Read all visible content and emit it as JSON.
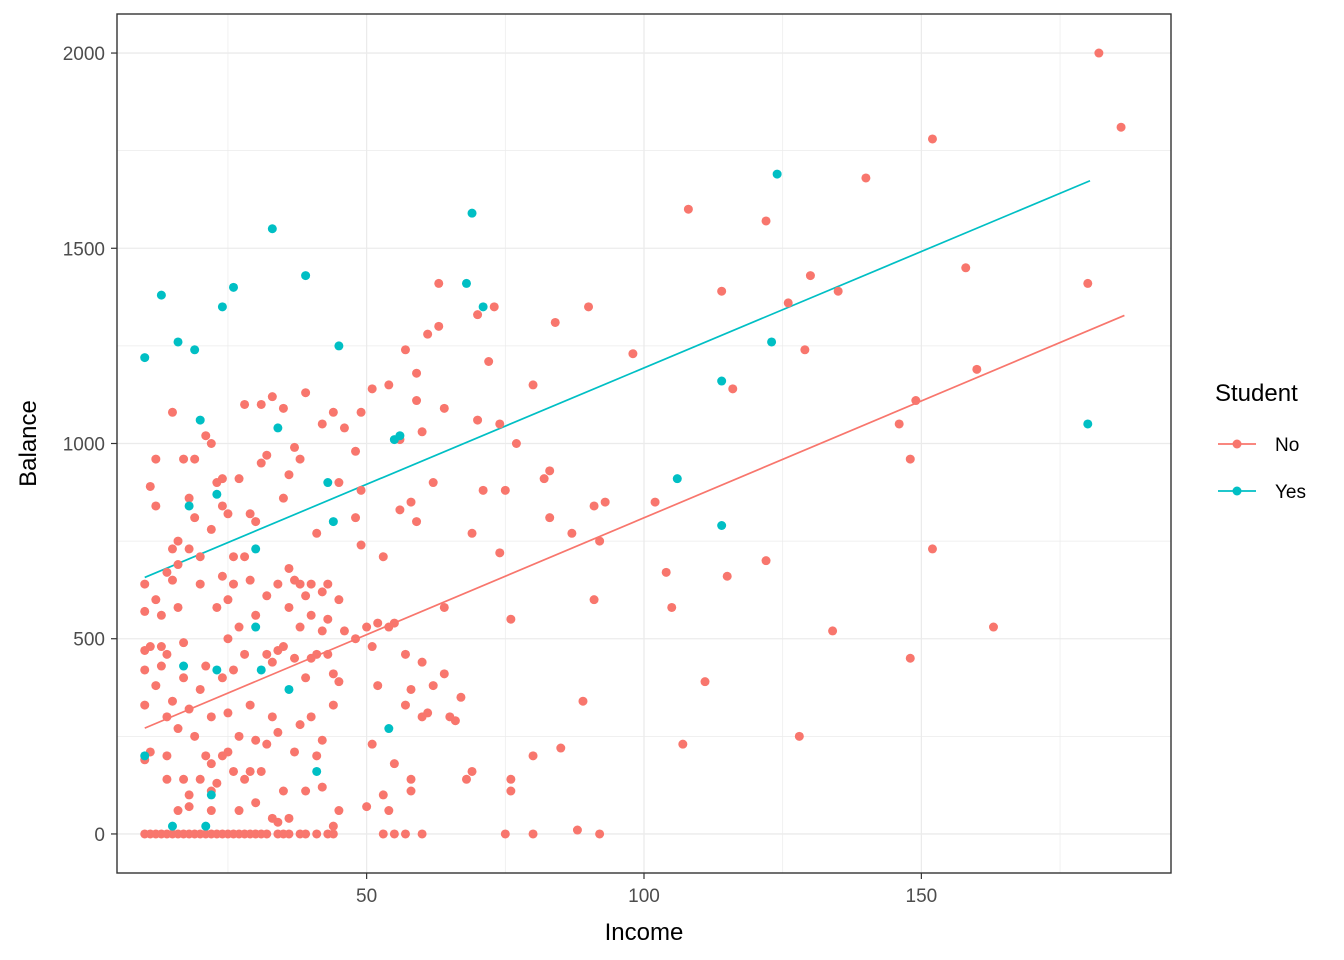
{
  "chart_data": {
    "type": "scatter",
    "title": "",
    "xlabel": "Income",
    "ylabel": "Balance",
    "xlim": [
      5,
      195
    ],
    "ylim": [
      -100,
      2100
    ],
    "x_ticks": [
      50,
      100,
      150
    ],
    "y_ticks": [
      0,
      500,
      1000,
      1500,
      2000
    ],
    "grid": true,
    "legend": {
      "title": "Student",
      "position": "right"
    },
    "series": [
      {
        "name": "No",
        "color": "#F8766D",
        "fit_line": {
          "x": [
            10,
            186.6
          ],
          "y": [
            271,
            1328
          ]
        },
        "points": [
          [
            10,
            0
          ],
          [
            11,
            0
          ],
          [
            12,
            0
          ],
          [
            13,
            0
          ],
          [
            14,
            0
          ],
          [
            15,
            0
          ],
          [
            16,
            0
          ],
          [
            17,
            0
          ],
          [
            18,
            0
          ],
          [
            19,
            0
          ],
          [
            20,
            0
          ],
          [
            21,
            0
          ],
          [
            22,
            0
          ],
          [
            23,
            0
          ],
          [
            24,
            0
          ],
          [
            25,
            0
          ],
          [
            26,
            0
          ],
          [
            27,
            0
          ],
          [
            28,
            0
          ],
          [
            29,
            0
          ],
          [
            30,
            0
          ],
          [
            31,
            0
          ],
          [
            32,
            0
          ],
          [
            34,
            0
          ],
          [
            35,
            0
          ],
          [
            36,
            0
          ],
          [
            38,
            0
          ],
          [
            39,
            0
          ],
          [
            41,
            0
          ],
          [
            43,
            0
          ],
          [
            44,
            0
          ],
          [
            53,
            0
          ],
          [
            55,
            0
          ],
          [
            57,
            0
          ],
          [
            60,
            0
          ],
          [
            75,
            0
          ],
          [
            80,
            0
          ],
          [
            92,
            0
          ],
          [
            10,
            190
          ],
          [
            10,
            330
          ],
          [
            10,
            420
          ],
          [
            10,
            470
          ],
          [
            10,
            570
          ],
          [
            10,
            640
          ],
          [
            11,
            210
          ],
          [
            11,
            480
          ],
          [
            11,
            890
          ],
          [
            12,
            380
          ],
          [
            12,
            600
          ],
          [
            12,
            840
          ],
          [
            12,
            960
          ],
          [
            13,
            430
          ],
          [
            13,
            480
          ],
          [
            13,
            560
          ],
          [
            14,
            140
          ],
          [
            14,
            200
          ],
          [
            14,
            300
          ],
          [
            14,
            460
          ],
          [
            14,
            670
          ],
          [
            15,
            340
          ],
          [
            15,
            650
          ],
          [
            15,
            730
          ],
          [
            15,
            1080
          ],
          [
            16,
            60
          ],
          [
            16,
            270
          ],
          [
            16,
            580
          ],
          [
            16,
            690
          ],
          [
            16,
            750
          ],
          [
            17,
            140
          ],
          [
            17,
            400
          ],
          [
            17,
            490
          ],
          [
            17,
            960
          ],
          [
            18,
            70
          ],
          [
            18,
            100
          ],
          [
            18,
            320
          ],
          [
            18,
            730
          ],
          [
            18,
            860
          ],
          [
            19,
            250
          ],
          [
            19,
            810
          ],
          [
            19,
            960
          ],
          [
            20,
            140
          ],
          [
            20,
            370
          ],
          [
            20,
            640
          ],
          [
            20,
            710
          ],
          [
            21,
            200
          ],
          [
            21,
            430
          ],
          [
            21,
            1020
          ],
          [
            22,
            60
          ],
          [
            22,
            110
          ],
          [
            22,
            180
          ],
          [
            22,
            300
          ],
          [
            22,
            780
          ],
          [
            22,
            1000
          ],
          [
            23,
            130
          ],
          [
            23,
            580
          ],
          [
            23,
            900
          ],
          [
            24,
            200
          ],
          [
            24,
            400
          ],
          [
            24,
            660
          ],
          [
            24,
            840
          ],
          [
            24,
            910
          ],
          [
            25,
            210
          ],
          [
            25,
            310
          ],
          [
            25,
            500
          ],
          [
            25,
            600
          ],
          [
            25,
            820
          ],
          [
            26,
            160
          ],
          [
            26,
            420
          ],
          [
            26,
            640
          ],
          [
            26,
            710
          ],
          [
            27,
            60
          ],
          [
            27,
            250
          ],
          [
            27,
            530
          ],
          [
            27,
            910
          ],
          [
            28,
            140
          ],
          [
            28,
            460
          ],
          [
            28,
            710
          ],
          [
            28,
            1100
          ],
          [
            29,
            160
          ],
          [
            29,
            330
          ],
          [
            29,
            650
          ],
          [
            29,
            820
          ],
          [
            30,
            80
          ],
          [
            30,
            240
          ],
          [
            30,
            560
          ],
          [
            30,
            800
          ],
          [
            31,
            160
          ],
          [
            31,
            950
          ],
          [
            31,
            1100
          ],
          [
            32,
            230
          ],
          [
            32,
            460
          ],
          [
            32,
            610
          ],
          [
            32,
            970
          ],
          [
            33,
            40
          ],
          [
            33,
            300
          ],
          [
            33,
            440
          ],
          [
            33,
            1120
          ],
          [
            34,
            30
          ],
          [
            34,
            260
          ],
          [
            34,
            470
          ],
          [
            34,
            640
          ],
          [
            35,
            110
          ],
          [
            35,
            480
          ],
          [
            35,
            860
          ],
          [
            35,
            1090
          ],
          [
            36,
            40
          ],
          [
            36,
            580
          ],
          [
            36,
            680
          ],
          [
            36,
            920
          ],
          [
            37,
            210
          ],
          [
            37,
            450
          ],
          [
            37,
            650
          ],
          [
            37,
            990
          ],
          [
            38,
            280
          ],
          [
            38,
            530
          ],
          [
            38,
            640
          ],
          [
            38,
            960
          ],
          [
            39,
            110
          ],
          [
            39,
            400
          ],
          [
            39,
            610
          ],
          [
            39,
            1130
          ],
          [
            40,
            300
          ],
          [
            40,
            450
          ],
          [
            40,
            560
          ],
          [
            40,
            640
          ],
          [
            41,
            200
          ],
          [
            41,
            460
          ],
          [
            41,
            770
          ],
          [
            42,
            120
          ],
          [
            42,
            240
          ],
          [
            42,
            520
          ],
          [
            42,
            620
          ],
          [
            42,
            1050
          ],
          [
            43,
            460
          ],
          [
            43,
            550
          ],
          [
            43,
            640
          ],
          [
            44,
            20
          ],
          [
            44,
            330
          ],
          [
            44,
            410
          ],
          [
            44,
            1080
          ],
          [
            45,
            60
          ],
          [
            45,
            390
          ],
          [
            45,
            600
          ],
          [
            45,
            900
          ],
          [
            46,
            520
          ],
          [
            46,
            1040
          ],
          [
            48,
            500
          ],
          [
            48,
            810
          ],
          [
            48,
            980
          ],
          [
            49,
            740
          ],
          [
            49,
            880
          ],
          [
            49,
            1080
          ],
          [
            50,
            70
          ],
          [
            50,
            530
          ],
          [
            51,
            230
          ],
          [
            51,
            480
          ],
          [
            51,
            1140
          ],
          [
            52,
            380
          ],
          [
            52,
            540
          ],
          [
            53,
            100
          ],
          [
            53,
            710
          ],
          [
            54,
            60
          ],
          [
            54,
            530
          ],
          [
            54,
            1150
          ],
          [
            55,
            180
          ],
          [
            55,
            540
          ],
          [
            56,
            830
          ],
          [
            56,
            1010
          ],
          [
            57,
            330
          ],
          [
            57,
            460
          ],
          [
            57,
            1240
          ],
          [
            58,
            110
          ],
          [
            58,
            140
          ],
          [
            58,
            370
          ],
          [
            58,
            850
          ],
          [
            59,
            800
          ],
          [
            59,
            1110
          ],
          [
            59,
            1180
          ],
          [
            60,
            300
          ],
          [
            60,
            440
          ],
          [
            60,
            1030
          ],
          [
            61,
            310
          ],
          [
            61,
            1280
          ],
          [
            62,
            380
          ],
          [
            62,
            900
          ],
          [
            63,
            1410
          ],
          [
            63,
            1300
          ],
          [
            64,
            410
          ],
          [
            64,
            580
          ],
          [
            64,
            1090
          ],
          [
            65,
            300
          ],
          [
            66,
            290
          ],
          [
            67,
            350
          ],
          [
            68,
            140
          ],
          [
            69,
            160
          ],
          [
            69,
            770
          ],
          [
            70,
            1060
          ],
          [
            70,
            1330
          ],
          [
            71,
            880
          ],
          [
            72,
            1210
          ],
          [
            73,
            1350
          ],
          [
            74,
            720
          ],
          [
            74,
            1050
          ],
          [
            75,
            880
          ],
          [
            76,
            110
          ],
          [
            76,
            140
          ],
          [
            76,
            550
          ],
          [
            77,
            1000
          ],
          [
            80,
            200
          ],
          [
            80,
            1150
          ],
          [
            82,
            910
          ],
          [
            83,
            810
          ],
          [
            83,
            930
          ],
          [
            84,
            1310
          ],
          [
            85,
            220
          ],
          [
            87,
            770
          ],
          [
            88,
            10
          ],
          [
            89,
            340
          ],
          [
            90,
            1350
          ],
          [
            91,
            600
          ],
          [
            91,
            840
          ],
          [
            92,
            750
          ],
          [
            93,
            850
          ],
          [
            98,
            1230
          ],
          [
            102,
            850
          ],
          [
            104,
            670
          ],
          [
            105,
            580
          ],
          [
            107,
            230
          ],
          [
            108,
            1600
          ],
          [
            111,
            390
          ],
          [
            114,
            1390
          ],
          [
            115,
            660
          ],
          [
            116,
            1140
          ],
          [
            122,
            700
          ],
          [
            122,
            1570
          ],
          [
            126,
            1360
          ],
          [
            128,
            250
          ],
          [
            129,
            1240
          ],
          [
            130,
            1430
          ],
          [
            134,
            520
          ],
          [
            135,
            1390
          ],
          [
            140,
            1680
          ],
          [
            146,
            1050
          ],
          [
            148,
            450
          ],
          [
            148,
            960
          ],
          [
            149,
            1110
          ],
          [
            152,
            730
          ],
          [
            152,
            1780
          ],
          [
            158,
            1450
          ],
          [
            160,
            1190
          ],
          [
            163,
            530
          ],
          [
            180,
            1410
          ],
          [
            182,
            2000
          ],
          [
            186,
            1810
          ]
        ]
      },
      {
        "name": "Yes",
        "color": "#00BFC4",
        "fit_line": {
          "x": [
            10,
            180.4
          ],
          "y": [
            657,
            1673
          ]
        },
        "points": [
          [
            10,
            1220
          ],
          [
            10,
            200
          ],
          [
            13,
            1380
          ],
          [
            15,
            20
          ],
          [
            16,
            1260
          ],
          [
            17,
            430
          ],
          [
            18,
            840
          ],
          [
            19,
            1240
          ],
          [
            20,
            1060
          ],
          [
            21,
            20
          ],
          [
            22,
            100
          ],
          [
            23,
            420
          ],
          [
            23,
            870
          ],
          [
            24,
            1350
          ],
          [
            26,
            1400
          ],
          [
            30,
            730
          ],
          [
            30,
            530
          ],
          [
            31,
            420
          ],
          [
            33,
            1550
          ],
          [
            34,
            1040
          ],
          [
            36,
            370
          ],
          [
            39,
            1430
          ],
          [
            41,
            160
          ],
          [
            43,
            900
          ],
          [
            44,
            800
          ],
          [
            45,
            1250
          ],
          [
            54,
            270
          ],
          [
            55,
            1010
          ],
          [
            56,
            1020
          ],
          [
            68,
            1410
          ],
          [
            69,
            1590
          ],
          [
            71,
            1350
          ],
          [
            106,
            910
          ],
          [
            114,
            790
          ],
          [
            114,
            1160
          ],
          [
            123,
            1260
          ],
          [
            124,
            1690
          ],
          [
            180,
            1050
          ]
        ]
      }
    ]
  }
}
